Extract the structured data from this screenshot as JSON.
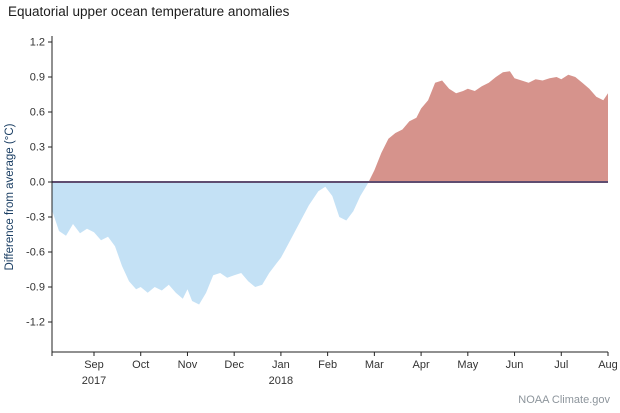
{
  "title": "Equatorial upper ocean temperature anomalies",
  "credit": "NOAA Climate.gov",
  "chart_data": {
    "type": "area",
    "title": "Equatorial upper ocean temperature anomalies",
    "ylabel": "Difference from average (°C)",
    "ylim": [
      -1.2,
      1.2
    ],
    "yticks": [
      "1.2",
      "0.9",
      "0.6",
      "0.3",
      "0.0",
      "-0.3",
      "-0.6",
      "-0.9",
      "-1.2"
    ],
    "xtick_labels": [
      "Sep",
      "Oct",
      "Nov",
      "Dec",
      "Jan",
      "Feb",
      "Mar",
      "Apr",
      "May",
      "Jun",
      "Jul",
      "Aug"
    ],
    "year_labels": [
      {
        "label": "2017",
        "month_index": 0
      },
      {
        "label": "2018",
        "month_index": 4
      }
    ],
    "x_units": "months after Sep 2017 tick",
    "x": [
      -0.9,
      -0.75,
      -0.6,
      -0.45,
      -0.3,
      -0.15,
      0,
      0.15,
      0.3,
      0.45,
      0.6,
      0.75,
      0.9,
      1.0,
      1.15,
      1.3,
      1.45,
      1.6,
      1.75,
      1.9,
      2.0,
      2.1,
      2.25,
      2.4,
      2.55,
      2.7,
      2.85,
      3.0,
      3.15,
      3.3,
      3.45,
      3.6,
      3.75,
      3.9,
      4.0,
      4.2,
      4.4,
      4.6,
      4.8,
      4.95,
      5.1,
      5.25,
      5.4,
      5.55,
      5.7,
      5.85,
      6.0,
      6.15,
      6.3,
      6.45,
      6.6,
      6.75,
      6.9,
      7.0,
      7.15,
      7.3,
      7.45,
      7.6,
      7.75,
      7.9,
      8.0,
      8.15,
      8.3,
      8.45,
      8.6,
      8.75,
      8.9,
      9.0,
      9.15,
      9.3,
      9.45,
      9.6,
      9.75,
      9.9,
      10.0,
      10.15,
      10.3,
      10.45,
      10.6,
      10.75,
      10.9,
      11.0
    ],
    "values": [
      -0.24,
      -0.42,
      -0.46,
      -0.36,
      -0.44,
      -0.4,
      -0.43,
      -0.5,
      -0.47,
      -0.55,
      -0.72,
      -0.85,
      -0.92,
      -0.9,
      -0.95,
      -0.9,
      -0.93,
      -0.88,
      -0.95,
      -1.0,
      -0.92,
      -1.02,
      -1.05,
      -0.95,
      -0.8,
      -0.78,
      -0.82,
      -0.8,
      -0.78,
      -0.85,
      -0.9,
      -0.88,
      -0.78,
      -0.7,
      -0.65,
      -0.5,
      -0.35,
      -0.2,
      -0.08,
      -0.04,
      -0.12,
      -0.3,
      -0.33,
      -0.25,
      -0.12,
      -0.02,
      0.1,
      0.25,
      0.37,
      0.42,
      0.45,
      0.52,
      0.55,
      0.63,
      0.7,
      0.85,
      0.87,
      0.8,
      0.76,
      0.78,
      0.8,
      0.78,
      0.82,
      0.85,
      0.9,
      0.94,
      0.95,
      0.89,
      0.87,
      0.85,
      0.88,
      0.87,
      0.89,
      0.9,
      0.88,
      0.92,
      0.9,
      0.85,
      0.8,
      0.73,
      0.7,
      0.76
    ],
    "legend": "none",
    "grid": false,
    "colors": {
      "positive_fill": "#d6938c",
      "negative_fill": "#c4e1f5",
      "zero_line": "#5f4d70",
      "axis": "#222222",
      "tick_label": "#333333",
      "ylabel_color": "#1a3e63"
    }
  }
}
